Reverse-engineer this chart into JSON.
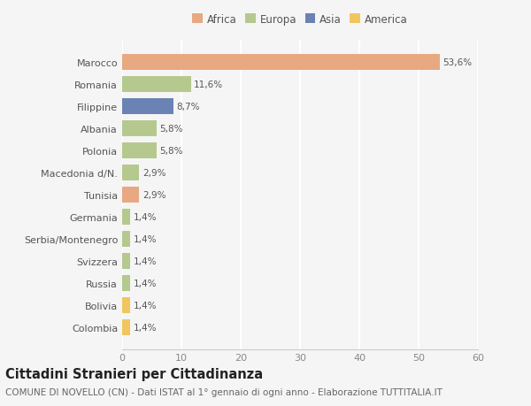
{
  "countries": [
    "Colombia",
    "Bolivia",
    "Russia",
    "Svizzera",
    "Serbia/Montenegro",
    "Germania",
    "Tunisia",
    "Macedonia d/N.",
    "Polonia",
    "Albania",
    "Filippine",
    "Romania",
    "Marocco"
  ],
  "values": [
    1.4,
    1.4,
    1.4,
    1.4,
    1.4,
    1.4,
    2.9,
    2.9,
    5.8,
    5.8,
    8.7,
    11.6,
    53.6
  ],
  "labels": [
    "1,4%",
    "1,4%",
    "1,4%",
    "1,4%",
    "1,4%",
    "1,4%",
    "2,9%",
    "2,9%",
    "5,8%",
    "5,8%",
    "8,7%",
    "11,6%",
    "53,6%"
  ],
  "colors": [
    "#f0c75e",
    "#f0c75e",
    "#b5c98e",
    "#b5c98e",
    "#b5c98e",
    "#b5c98e",
    "#e8a882",
    "#b5c98e",
    "#b5c98e",
    "#b5c98e",
    "#6b82b5",
    "#b5c98e",
    "#e8a882"
  ],
  "legend_labels": [
    "Africa",
    "Europa",
    "Asia",
    "America"
  ],
  "legend_colors": [
    "#e8a882",
    "#b5c98e",
    "#6b82b5",
    "#f0c75e"
  ],
  "title": "Cittadini Stranieri per Cittadinanza",
  "subtitle": "COMUNE DI NOVELLO (CN) - Dati ISTAT al 1° gennaio di ogni anno - Elaborazione TUTTITALIA.IT",
  "xlim": [
    0,
    60
  ],
  "xticks": [
    0,
    10,
    20,
    30,
    40,
    50,
    60
  ],
  "background_color": "#f5f5f5",
  "bar_height": 0.72,
  "title_fontsize": 10.5,
  "subtitle_fontsize": 7.5,
  "label_fontsize": 7.5,
  "tick_fontsize": 8,
  "legend_fontsize": 8.5
}
